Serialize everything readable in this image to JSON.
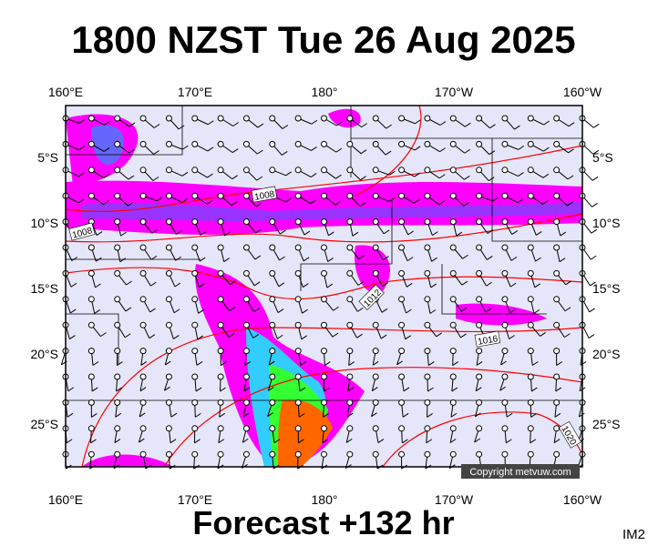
{
  "title": "1800 NZST Tue 26 Aug 2025",
  "footer": "Forecast +132 hr",
  "corner_label": "IM2",
  "copyright": "Copyright metvuw.com",
  "longitude_labels": [
    "160°E",
    "170°E",
    "180°",
    "170°W",
    "160°W"
  ],
  "latitude_labels": [
    "5°S",
    "10°S",
    "15°S",
    "20°S",
    "25°S"
  ],
  "isobar_labels": [
    "1008",
    "1008",
    "1012",
    "1016",
    "1020"
  ]
}
